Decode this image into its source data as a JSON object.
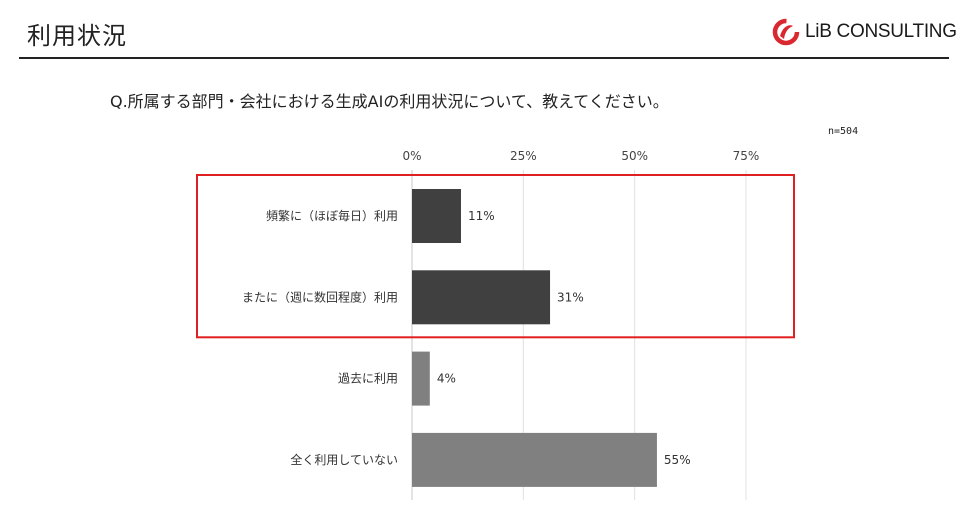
{
  "header": {
    "title": "利用状況",
    "logo_text": "LiB CONSULTING",
    "logo_color": "#d9282f"
  },
  "question": "Q.所属する部門・会社における生成AIの利用状況について、教えてください。",
  "sample_size": "n=504",
  "highlight_color": "#e02020",
  "chart_data": {
    "type": "bar",
    "orientation": "horizontal",
    "categories": [
      "頻繁に（ほぼ毎日）利用",
      "またに（週に数回程度）利用",
      "過去に利用",
      "全く利用していない"
    ],
    "values": [
      11,
      31,
      4,
      55
    ],
    "value_labels": [
      "11%",
      "31%",
      "4%",
      "55%"
    ],
    "bar_colors": [
      "#404040",
      "#404040",
      "#808080",
      "#808080"
    ],
    "xlim": [
      0,
      75
    ],
    "xticks": [
      0,
      25,
      50,
      75
    ],
    "xtick_labels": [
      "0%",
      "25%",
      "50%",
      "75%"
    ],
    "axis_position": "top",
    "grid": true,
    "highlighted_categories": [
      0,
      1
    ]
  }
}
